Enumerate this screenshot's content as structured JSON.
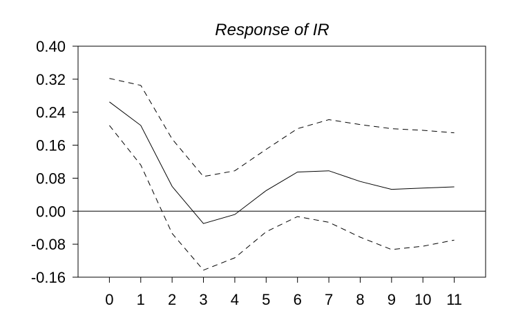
{
  "chart_data": {
    "type": "line",
    "title": "Response of IR",
    "xlabel": "",
    "ylabel": "",
    "x": [
      0,
      1,
      2,
      3,
      4,
      5,
      6,
      7,
      8,
      9,
      10,
      11
    ],
    "x_tick_labels": [
      "0",
      "1",
      "2",
      "3",
      "4",
      "5",
      "6",
      "7",
      "8",
      "9",
      "10",
      "11"
    ],
    "y_tick_labels": [
      "0.40",
      "0.32",
      "0.24",
      "0.16",
      "0.08",
      "0.00",
      "-0.08",
      "-0.16"
    ],
    "y_ticks": [
      0.4,
      0.32,
      0.24,
      0.16,
      0.08,
      0.0,
      -0.08,
      -0.16
    ],
    "xlim": [
      -1,
      12
    ],
    "ylim": [
      -0.16,
      0.4
    ],
    "grid": false,
    "zero_line": true,
    "series": [
      {
        "style": "solid",
        "values": [
          0.265,
          0.208,
          0.06,
          -0.03,
          -0.008,
          0.05,
          0.095,
          0.098,
          0.072,
          0.053,
          0.056,
          0.059
        ]
      },
      {
        "style": "dashed",
        "values": [
          0.322,
          0.305,
          0.175,
          0.084,
          0.098,
          0.15,
          0.2,
          0.222,
          0.21,
          0.2,
          0.196,
          0.19
        ]
      },
      {
        "style": "dashed",
        "values": [
          0.208,
          0.112,
          -0.054,
          -0.143,
          -0.113,
          -0.05,
          -0.013,
          -0.027,
          -0.063,
          -0.093,
          -0.085,
          -0.07
        ]
      }
    ]
  }
}
